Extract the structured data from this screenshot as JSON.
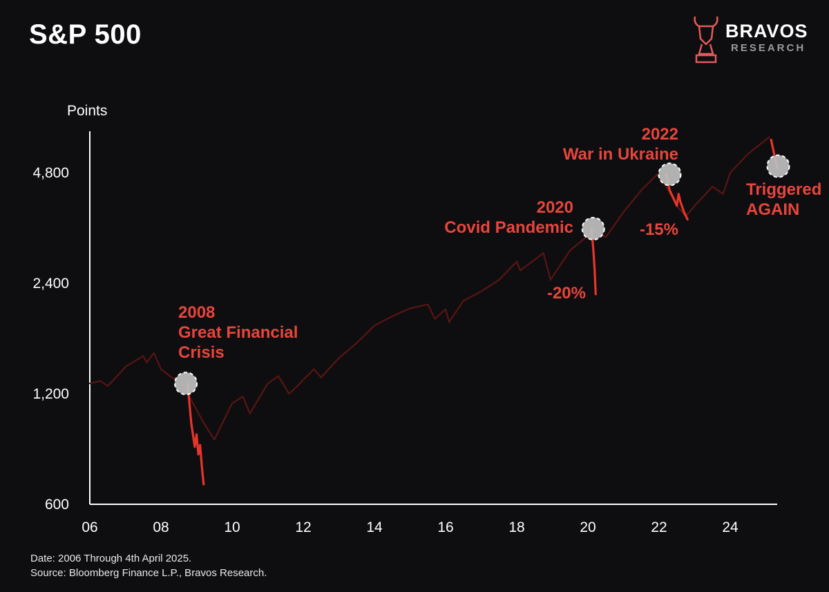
{
  "header": {
    "title": "S&P 500"
  },
  "logo": {
    "brand": "BRAVOS",
    "sub": "RESEARCH",
    "icon": "bull-knight-icon",
    "color": "#e25b5b"
  },
  "footer": {
    "date_note": "Date: 2006 Through 4th April 2025.",
    "source_note": "Source: Bloomberg Finance L.P., Bravos Research."
  },
  "colors": {
    "background": "#0e0e10",
    "line": "#5a1512",
    "highlight": "#e8352c",
    "annotation": "#e8453c",
    "marker": "#bfbfbf"
  },
  "chart_data": {
    "type": "line",
    "title": "S&P 500",
    "ylabel": "Points",
    "xlabel": "",
    "y_scale": "log",
    "ylim": [
      600,
      6000
    ],
    "xlim": [
      2006,
      2025.4
    ],
    "y_ticks": [
      600,
      1200,
      2400,
      4800
    ],
    "y_tick_labels": [
      "600",
      "1,200",
      "2,400",
      "4,800"
    ],
    "x_ticks": [
      2006,
      2008,
      2010,
      2012,
      2014,
      2016,
      2018,
      2020,
      2022,
      2024
    ],
    "x_tick_labels": [
      "06",
      "08",
      "10",
      "12",
      "14",
      "16",
      "18",
      "20",
      "22",
      "24"
    ],
    "grid": false,
    "series": [
      {
        "values_x": [
          2006.0,
          2006.3,
          2006.5,
          2006.8,
          2007.0,
          2007.3,
          2007.5,
          2007.6,
          2007.8,
          2008.0,
          2008.3,
          2008.5,
          2008.6,
          2009.2,
          2009.5,
          2010.0,
          2010.3,
          2010.5,
          2011.0,
          2011.3,
          2011.6,
          2011.8,
          2012.0,
          2012.3,
          2012.5,
          2013.0,
          2013.5,
          2014.0,
          2014.5,
          2015.0,
          2015.5,
          2015.7,
          2016.0,
          2016.1,
          2016.5,
          2017.0,
          2017.5,
          2018.0,
          2018.1,
          2018.5,
          2018.75,
          2018.95,
          2019.5,
          2020.0,
          2020.15,
          2020.5,
          2021.0,
          2021.5,
          2021.95,
          2022.2,
          2022.5,
          2022.75,
          2023.0,
          2023.5,
          2023.8,
          2024.0,
          2024.5,
          2025.0,
          2025.1
        ],
        "values_y": [
          1280,
          1300,
          1260,
          1350,
          1420,
          1480,
          1520,
          1460,
          1550,
          1400,
          1330,
          1300,
          1280,
          1000,
          900,
          1130,
          1180,
          1060,
          1280,
          1340,
          1200,
          1250,
          1310,
          1400,
          1330,
          1500,
          1650,
          1840,
          1950,
          2050,
          2100,
          1920,
          2040,
          1880,
          2150,
          2280,
          2450,
          2750,
          2600,
          2780,
          2900,
          2450,
          2950,
          3230,
          3380,
          3200,
          3750,
          4300,
          4750,
          4400,
          3900,
          3650,
          3900,
          4400,
          4200,
          4800,
          5400,
          5900,
          6000
        ]
      },
      {
        "values_x": [
          2008.75,
          2008.85,
          2008.95,
          2009.0,
          2009.05,
          2009.1,
          2009.15,
          2009.2
        ],
        "values_y": [
          1280,
          1000,
          860,
          930,
          820,
          870,
          760,
          680
        ]
      },
      {
        "values_x": [
          2020.1,
          2020.13,
          2020.16,
          2020.19,
          2020.22
        ],
        "values_y": [
          3380,
          3150,
          2900,
          2600,
          2240
        ]
      },
      {
        "values_x": [
          2022.2,
          2022.3,
          2022.4,
          2022.5,
          2022.55,
          2022.6,
          2022.7,
          2022.8
        ],
        "values_y": [
          4750,
          4300,
          4100,
          3900,
          4200,
          4000,
          3750,
          3580
        ]
      },
      {
        "values_x": [
          2025.15,
          2025.2,
          2025.27,
          2025.32
        ],
        "values_y": [
          5900,
          5600,
          5200,
          4950
        ]
      }
    ],
    "markers": [
      {
        "x": 2008.7,
        "y": 1280
      },
      {
        "x": 2020.15,
        "y": 3380
      },
      {
        "x": 2022.3,
        "y": 4750
      },
      {
        "x": 2025.35,
        "y": 5000
      }
    ],
    "annotations": [
      {
        "lines": [
          "2008",
          "Great Financial",
          "Crisis"
        ]
      },
      {
        "lines": [
          "2020",
          "Covid Pandemic"
        ]
      },
      {
        "lines": [
          "-20%"
        ]
      },
      {
        "lines": [
          "2022",
          "War in Ukraine"
        ]
      },
      {
        "lines": [
          "-15%"
        ]
      },
      {
        "lines": [
          "Triggered",
          "AGAIN"
        ]
      }
    ]
  }
}
